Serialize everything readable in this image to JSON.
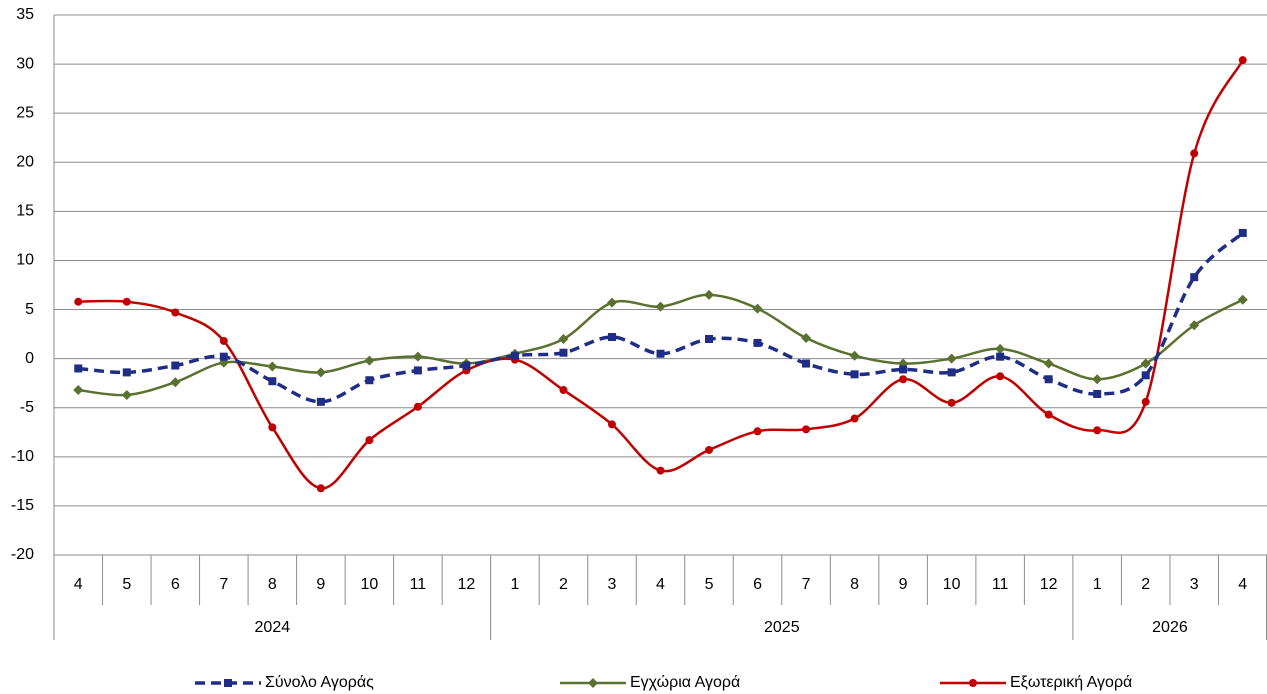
{
  "chart_data": {
    "type": "line",
    "category_groups": [
      {
        "label": "2024",
        "categories": [
          "4",
          "5",
          "6",
          "7",
          "8",
          "9",
          "10",
          "11",
          "12"
        ]
      },
      {
        "label": "2025",
        "categories": [
          "1",
          "2",
          "3",
          "4",
          "5",
          "6",
          "7",
          "8",
          "9",
          "10",
          "11",
          "12"
        ]
      },
      {
        "label": "2026",
        "categories": [
          "1",
          "2",
          "3",
          "4"
        ]
      }
    ],
    "series": [
      {
        "name": "Σύνολο Αγοράς",
        "color": "#1F2D86",
        "dashed": true,
        "marker": "square",
        "values": [
          -1.0,
          -1.4,
          -0.7,
          0.2,
          -2.3,
          -4.4,
          -2.2,
          -1.2,
          -0.7,
          0.3,
          0.6,
          2.2,
          0.5,
          2.0,
          1.6,
          -0.5,
          -1.6,
          -1.1,
          -1.4,
          0.2,
          -2.1,
          -3.6,
          -1.7,
          8.3,
          12.8
        ]
      },
      {
        "name": "Εγχώρια Αγορά",
        "color": "#5A7130",
        "dashed": false,
        "marker": "diamond",
        "values": [
          -3.2,
          -3.7,
          -2.4,
          -0.4,
          -0.8,
          -1.4,
          -0.2,
          0.2,
          -0.5,
          0.5,
          2.0,
          5.7,
          5.3,
          6.5,
          5.1,
          2.1,
          0.3,
          -0.5,
          0.0,
          1.0,
          -0.5,
          -2.1,
          -0.5,
          3.4,
          6.0
        ]
      },
      {
        "name": "Εξωτερική Αγορά",
        "color": "#C00000",
        "dashed": false,
        "marker": "circle",
        "values": [
          5.8,
          5.8,
          4.7,
          1.8,
          -7.0,
          -13.2,
          -8.3,
          -4.9,
          -1.2,
          -0.1,
          -3.2,
          -6.7,
          -11.4,
          -9.3,
          -7.4,
          -7.2,
          -6.1,
          -2.1,
          -4.5,
          -1.8,
          -5.7,
          -7.3,
          -4.4,
          20.9,
          30.4
        ]
      }
    ],
    "ylim": [
      -20,
      35
    ],
    "yticks": [
      -20,
      -15,
      -10,
      -5,
      0,
      5,
      10,
      15,
      20,
      25,
      30,
      35
    ],
    "grid": true,
    "smooth": true,
    "legend": "bottom"
  }
}
